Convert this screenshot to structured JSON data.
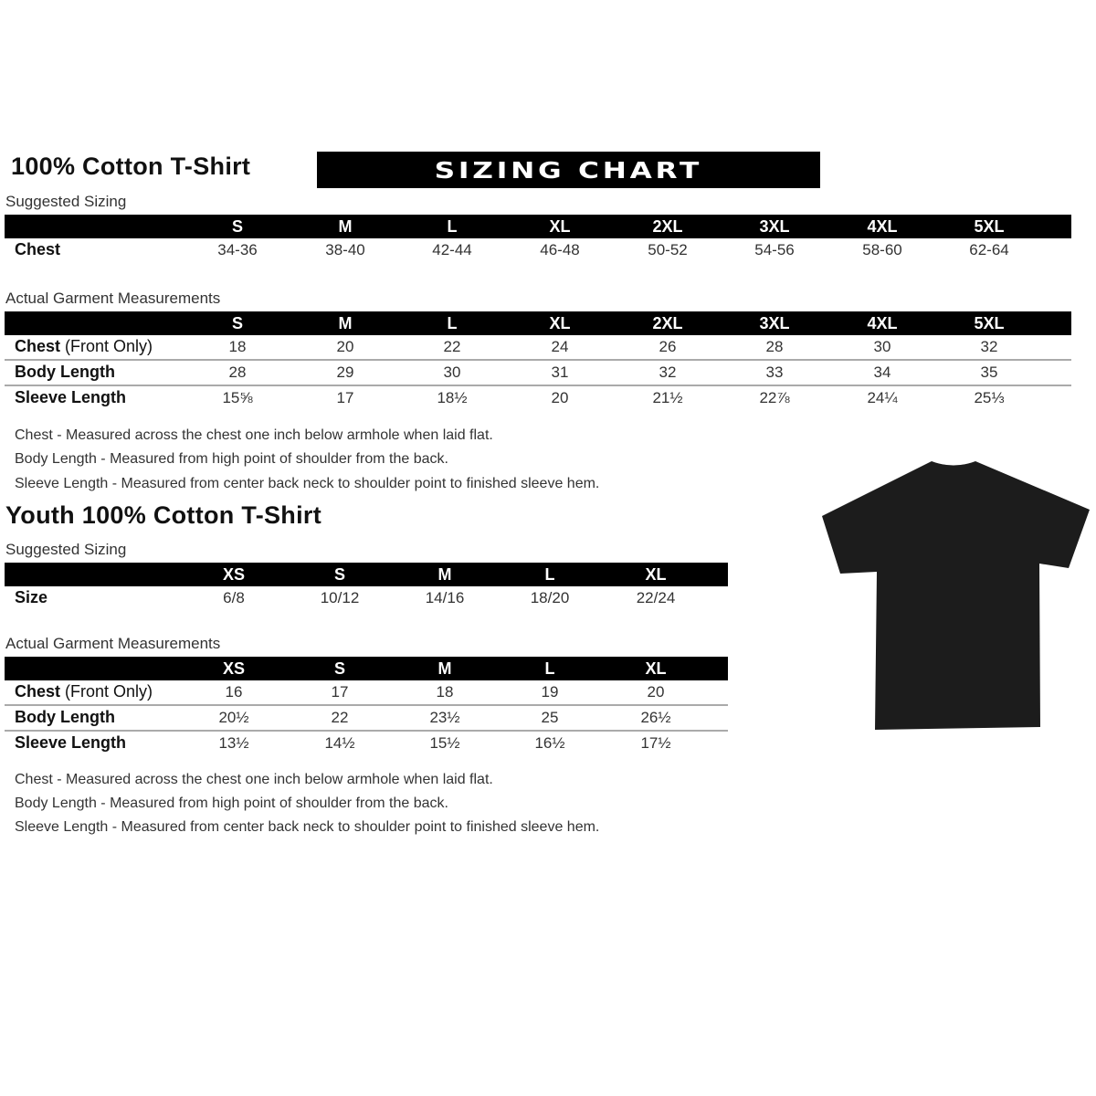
{
  "adult": {
    "title": "100% Cotton T-Shirt",
    "banner": "SIZING CHART",
    "suggested": {
      "label": "Suggested Sizing",
      "sizes": [
        "S",
        "M",
        "L",
        "XL",
        "2XL",
        "3XL",
        "4XL",
        "5XL"
      ],
      "rows": [
        {
          "label": "Chest",
          "label_extra": "",
          "values": [
            "34-36",
            "38-40",
            "42-44",
            "46-48",
            "50-52",
            "54-56",
            "58-60",
            "62-64"
          ]
        }
      ]
    },
    "actual": {
      "label": "Actual Garment Measurements",
      "sizes": [
        "S",
        "M",
        "L",
        "XL",
        "2XL",
        "3XL",
        "4XL",
        "5XL"
      ],
      "rows": [
        {
          "label": "Chest",
          "label_extra": " (Front Only)",
          "values": [
            "18",
            "20",
            "22",
            "24",
            "26",
            "28",
            "30",
            "32"
          ]
        },
        {
          "label": "Body Length",
          "label_extra": "",
          "values": [
            "28",
            "29",
            "30",
            "31",
            "32",
            "33",
            "34",
            "35"
          ]
        },
        {
          "label": "Sleeve Length",
          "label_extra": "",
          "values": [
            "15⅝",
            "17",
            "18½",
            "20",
            "21½",
            "22⅞",
            "24¼",
            "25⅓"
          ]
        }
      ]
    },
    "notes": [
      "Chest - Measured across the chest one inch below armhole when laid flat.",
      "Body Length - Measured from high point of shoulder from the back.",
      "Sleeve Length - Measured from center back neck to shoulder point to finished sleeve hem."
    ]
  },
  "youth": {
    "title": "Youth 100% Cotton T-Shirt",
    "suggested": {
      "label": "Suggested Sizing",
      "sizes": [
        "XS",
        "S",
        "M",
        "L",
        "XL"
      ],
      "rows": [
        {
          "label": "Size",
          "label_extra": "",
          "values": [
            "6/8",
            "10/12",
            "14/16",
            "18/20",
            "22/24"
          ]
        }
      ]
    },
    "actual": {
      "label": "Actual Garment Measurements",
      "sizes": [
        "XS",
        "S",
        "M",
        "L",
        "XL"
      ],
      "rows": [
        {
          "label": "Chest",
          "label_extra": " (Front Only)",
          "values": [
            "16",
            "17",
            "18",
            "19",
            "20"
          ]
        },
        {
          "label": "Body Length",
          "label_extra": "",
          "values": [
            "20½",
            "22",
            "23½",
            "25",
            "26½"
          ]
        },
        {
          "label": "Sleeve Length",
          "label_extra": "",
          "values": [
            "13½",
            "14½",
            "15½",
            "16½",
            "17½"
          ]
        }
      ]
    },
    "notes": [
      "Chest - Measured across the chest one inch below armhole when laid flat.",
      "Body Length - Measured from high point of shoulder from the back.",
      "Sleeve Length - Measured from center back neck to shoulder point to finished sleeve hem."
    ]
  },
  "shirt_image": {
    "color": "#1c1c1c"
  }
}
